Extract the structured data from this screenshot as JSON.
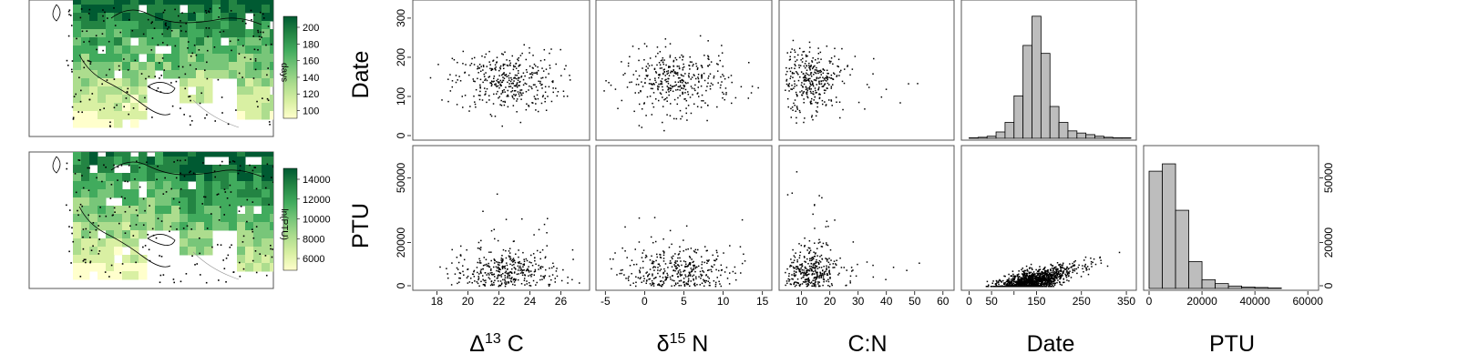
{
  "maps": [
    {
      "name": "date-map",
      "colorbar": {
        "ticks": [
          "200",
          "180",
          "160",
          "140",
          "120",
          "100"
        ],
        "title": "days",
        "colors": [
          "#005a32",
          "#238443",
          "#41ab5d",
          "#78c679",
          "#addd8e",
          "#d9f0a3",
          "#ffffcc"
        ]
      }
    },
    {
      "name": "ptu-map",
      "colorbar": {
        "ticks": [
          "14000",
          "12000",
          "10000",
          "8000",
          "6000"
        ],
        "title": "ln(PTU)",
        "colors": [
          "#005a32",
          "#238443",
          "#41ab5d",
          "#78c679",
          "#addd8e",
          "#d9f0a3",
          "#ffffcc"
        ]
      }
    }
  ],
  "row_labels": [
    "Date",
    "PTU"
  ],
  "column_labels": [
    {
      "prefix": "Δ",
      "sup": "13",
      "suffix": " C"
    },
    {
      "prefix": "δ",
      "sup": "15",
      "suffix": " N"
    },
    {
      "prefix": "C:N",
      "sup": "",
      "suffix": ""
    },
    {
      "prefix": "Date",
      "sup": "",
      "suffix": ""
    },
    {
      "prefix": "PTU",
      "sup": "",
      "suffix": ""
    }
  ],
  "axes": {
    "date_y": {
      "ticks": [
        "0",
        "100",
        "200",
        "300"
      ],
      "range": [
        0,
        330
      ]
    },
    "ptu_y": {
      "ticks": [
        "0",
        "20000",
        "50000"
      ],
      "tick_values": [
        0,
        20000,
        50000
      ],
      "range": [
        0,
        62000
      ]
    },
    "d13c_x": {
      "ticks": [
        "18",
        "20",
        "22",
        "24",
        "26"
      ],
      "tick_values": [
        18,
        20,
        22,
        24,
        26
      ],
      "range": [
        16.8,
        27.5
      ]
    },
    "d15n_x": {
      "ticks": [
        "-5",
        "0",
        "5",
        "10",
        "15"
      ],
      "tick_values": [
        -5,
        0,
        5,
        10,
        15
      ],
      "range": [
        -5.5,
        15.5
      ]
    },
    "cn_x": {
      "ticks": [
        "10",
        "20",
        "30",
        "40",
        "50",
        "60"
      ],
      "tick_values": [
        10,
        20,
        30,
        40,
        50,
        60
      ],
      "range": [
        4,
        62
      ]
    },
    "date_x": {
      "ticks": [
        "0",
        "50",
        "",
        "150",
        "250",
        "350"
      ],
      "tick_values": [
        0,
        50,
        100,
        150,
        250,
        350
      ],
      "range": [
        -5,
        360
      ]
    },
    "ptu_x": {
      "ticks": [
        "0",
        "20000",
        "40000",
        "60000"
      ],
      "tick_values": [
        0,
        20000,
        40000,
        60000
      ],
      "range": [
        0,
        62000
      ]
    },
    "ptu_right": {
      "ticks": [
        "0",
        "20000",
        "50000"
      ],
      "tick_values": [
        0,
        20000,
        50000
      ]
    }
  },
  "chart_data": [
    {
      "type": "bar",
      "title": "",
      "xlabel": "Date",
      "ylabel": "",
      "bin_edges": [
        0,
        20,
        40,
        60,
        80,
        100,
        120,
        140,
        160,
        180,
        200,
        220,
        240,
        260,
        280,
        300,
        320,
        340,
        360
      ],
      "values": [
        1,
        2,
        4,
        12,
        30,
        80,
        175,
        230,
        160,
        60,
        30,
        14,
        10,
        7,
        4,
        2,
        1,
        1
      ],
      "ylim": [
        0,
        240
      ]
    },
    {
      "type": "bar",
      "title": "",
      "xlabel": "PTU",
      "ylabel": "",
      "bin_edges": [
        0,
        5000,
        10000,
        15000,
        20000,
        25000,
        30000,
        35000,
        40000,
        45000,
        50000
      ],
      "values": [
        240,
        255,
        160,
        55,
        18,
        10,
        5,
        3,
        2,
        1
      ],
      "ylim": [
        0,
        270
      ]
    },
    {
      "type": "scatter",
      "title": "",
      "xlabel": "Δ13 C",
      "ylabel": "Date",
      "description": "Cloud of points centered near Δ13C ≈ 22.5, Date ≈ 140",
      "center": [
        22.5,
        140
      ],
      "spread": [
        1.7,
        40
      ],
      "n": 380,
      "xlim": [
        16.8,
        27.5
      ],
      "ylim": [
        0,
        330
      ]
    },
    {
      "type": "scatter",
      "title": "",
      "xlabel": "δ15 N",
      "ylabel": "Date",
      "center": [
        4,
        140
      ],
      "spread": [
        3.5,
        40
      ],
      "n": 380,
      "xlim": [
        -5.5,
        15.5
      ],
      "ylim": [
        0,
        330
      ]
    },
    {
      "type": "scatter",
      "title": "",
      "xlabel": "C:N",
      "ylabel": "Date",
      "center": [
        13,
        140
      ],
      "spread": [
        5,
        40
      ],
      "n": 380,
      "xlim": [
        4,
        62
      ],
      "ylim": [
        0,
        330
      ]
    },
    {
      "type": "scatter",
      "title": "",
      "xlabel": "Δ13 C",
      "ylabel": "PTU",
      "center": [
        22.5,
        6500
      ],
      "spread": [
        1.7,
        6000
      ],
      "n": 380,
      "xlim": [
        16.8,
        27.5
      ],
      "ylim": [
        0,
        62000
      ]
    },
    {
      "type": "scatter",
      "title": "",
      "xlabel": "δ15 N",
      "ylabel": "PTU",
      "center": [
        4,
        6500
      ],
      "spread": [
        3.5,
        6000
      ],
      "n": 380,
      "xlim": [
        -5.5,
        15.5
      ],
      "ylim": [
        0,
        62000
      ]
    },
    {
      "type": "scatter",
      "title": "",
      "xlabel": "C:N",
      "ylabel": "PTU",
      "center": [
        13,
        6500
      ],
      "spread": [
        5,
        6000
      ],
      "n": 380,
      "xlim": [
        4,
        62
      ],
      "ylim": [
        0,
        62000
      ]
    },
    {
      "type": "scatter",
      "title": "",
      "xlabel": "Date",
      "ylabel": "PTU",
      "description": "Positive nonlinear relationship: PTU increases with Date, dense cluster near Date ≈ 130, PTU ≈ 7000, rising to ≈ 50000 at Date ≈ 340",
      "n": 1400,
      "xlim": [
        -5,
        360
      ],
      "ylim": [
        0,
        62000
      ]
    }
  ]
}
